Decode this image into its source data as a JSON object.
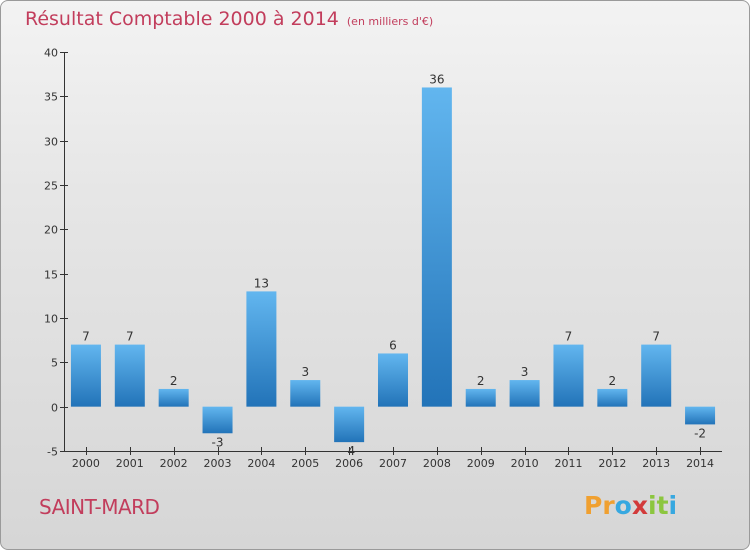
{
  "header": {
    "title": "Résultat Comptable 2000 à 2014",
    "subtitle": "(en milliers d'€)"
  },
  "footer": {
    "commune": "SAINT-MARD",
    "logo_letters": [
      "P",
      "r",
      "o",
      "x",
      "i",
      "t",
      "i"
    ],
    "logo_colors": [
      "#f0a030",
      "#f0a030",
      "#37a8e0",
      "#d23a3a",
      "#8cc63f",
      "#8cc63f",
      "#37a8e0"
    ]
  },
  "colors": {
    "bar": "#3a93d8",
    "title": "#c23d5c",
    "axis": "#333333"
  },
  "chart_data": {
    "type": "bar",
    "title": "Résultat Comptable 2000 à 2014 (en milliers d'€)",
    "xlabel": "",
    "ylabel": "",
    "categories": [
      "2000",
      "2001",
      "2002",
      "2003",
      "2004",
      "2005",
      "2006",
      "2007",
      "2008",
      "2009",
      "2010",
      "2011",
      "2012",
      "2013",
      "2014"
    ],
    "values": [
      7,
      7,
      2,
      -3,
      13,
      3,
      -4,
      6,
      36,
      2,
      3,
      7,
      2,
      7,
      -2
    ],
    "ylim": [
      -5,
      40
    ],
    "yticks": [
      -5,
      0,
      5,
      10,
      15,
      20,
      25,
      30,
      35,
      40
    ],
    "grid": false,
    "legend": "none"
  }
}
